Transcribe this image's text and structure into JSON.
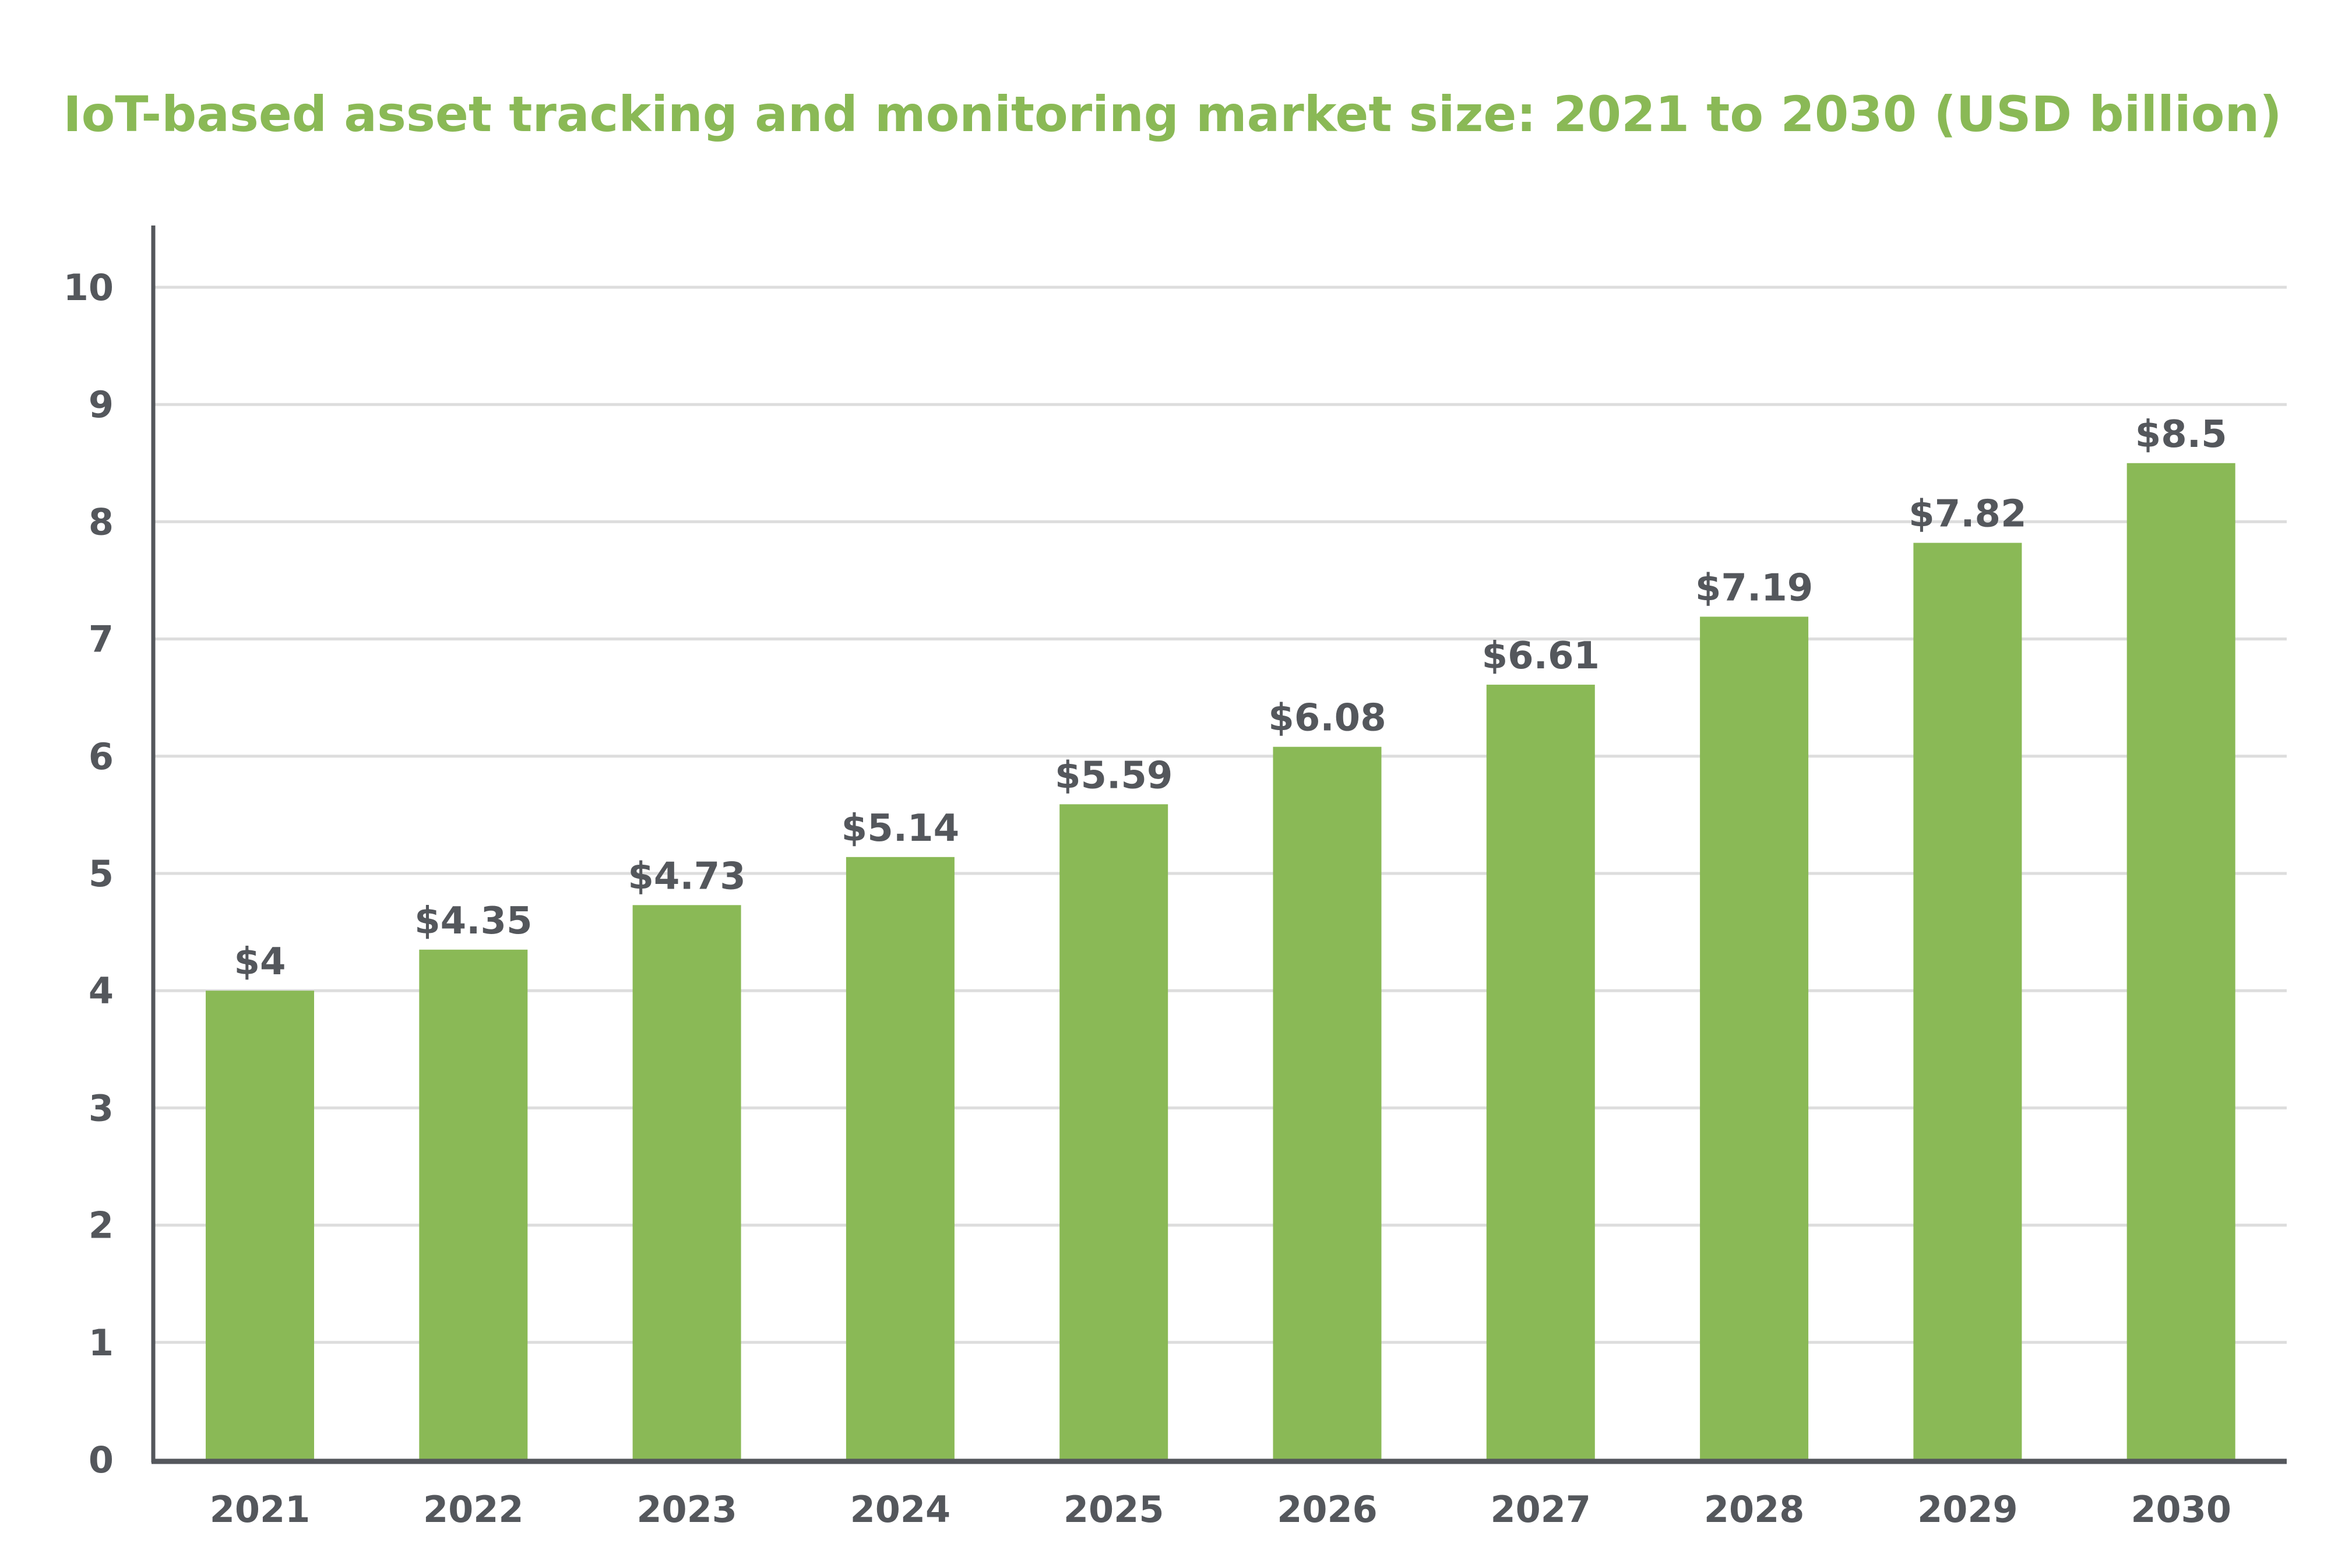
{
  "chart_data": {
    "type": "bar",
    "title": "IoT-based asset tracking and monitoring market size: 2021 to 2030 (USD billion)",
    "xlabel": "",
    "ylabel": "",
    "categories": [
      "2021",
      "2022",
      "2023",
      "2024",
      "2025",
      "2026",
      "2027",
      "2028",
      "2029",
      "2030"
    ],
    "values": [
      4,
      4.35,
      4.73,
      5.14,
      5.59,
      6.08,
      6.61,
      7.19,
      7.82,
      8.5
    ],
    "data_labels": [
      "$4",
      "$4.35",
      "$4.73",
      "$5.14",
      "$5.59",
      "$6.08",
      "$6.61",
      "$7.19",
      "$7.82",
      "$8.5"
    ],
    "ylim": [
      0,
      10
    ],
    "yticks": [
      0,
      1,
      2,
      3,
      4,
      5,
      6,
      7,
      8,
      9,
      10
    ],
    "grid": true,
    "legend": "none",
    "colors": {
      "bar": "#8ab956",
      "title": "#8ab956",
      "text": "#54575c",
      "axis": "#54575c",
      "grid": "#dddddd"
    }
  }
}
